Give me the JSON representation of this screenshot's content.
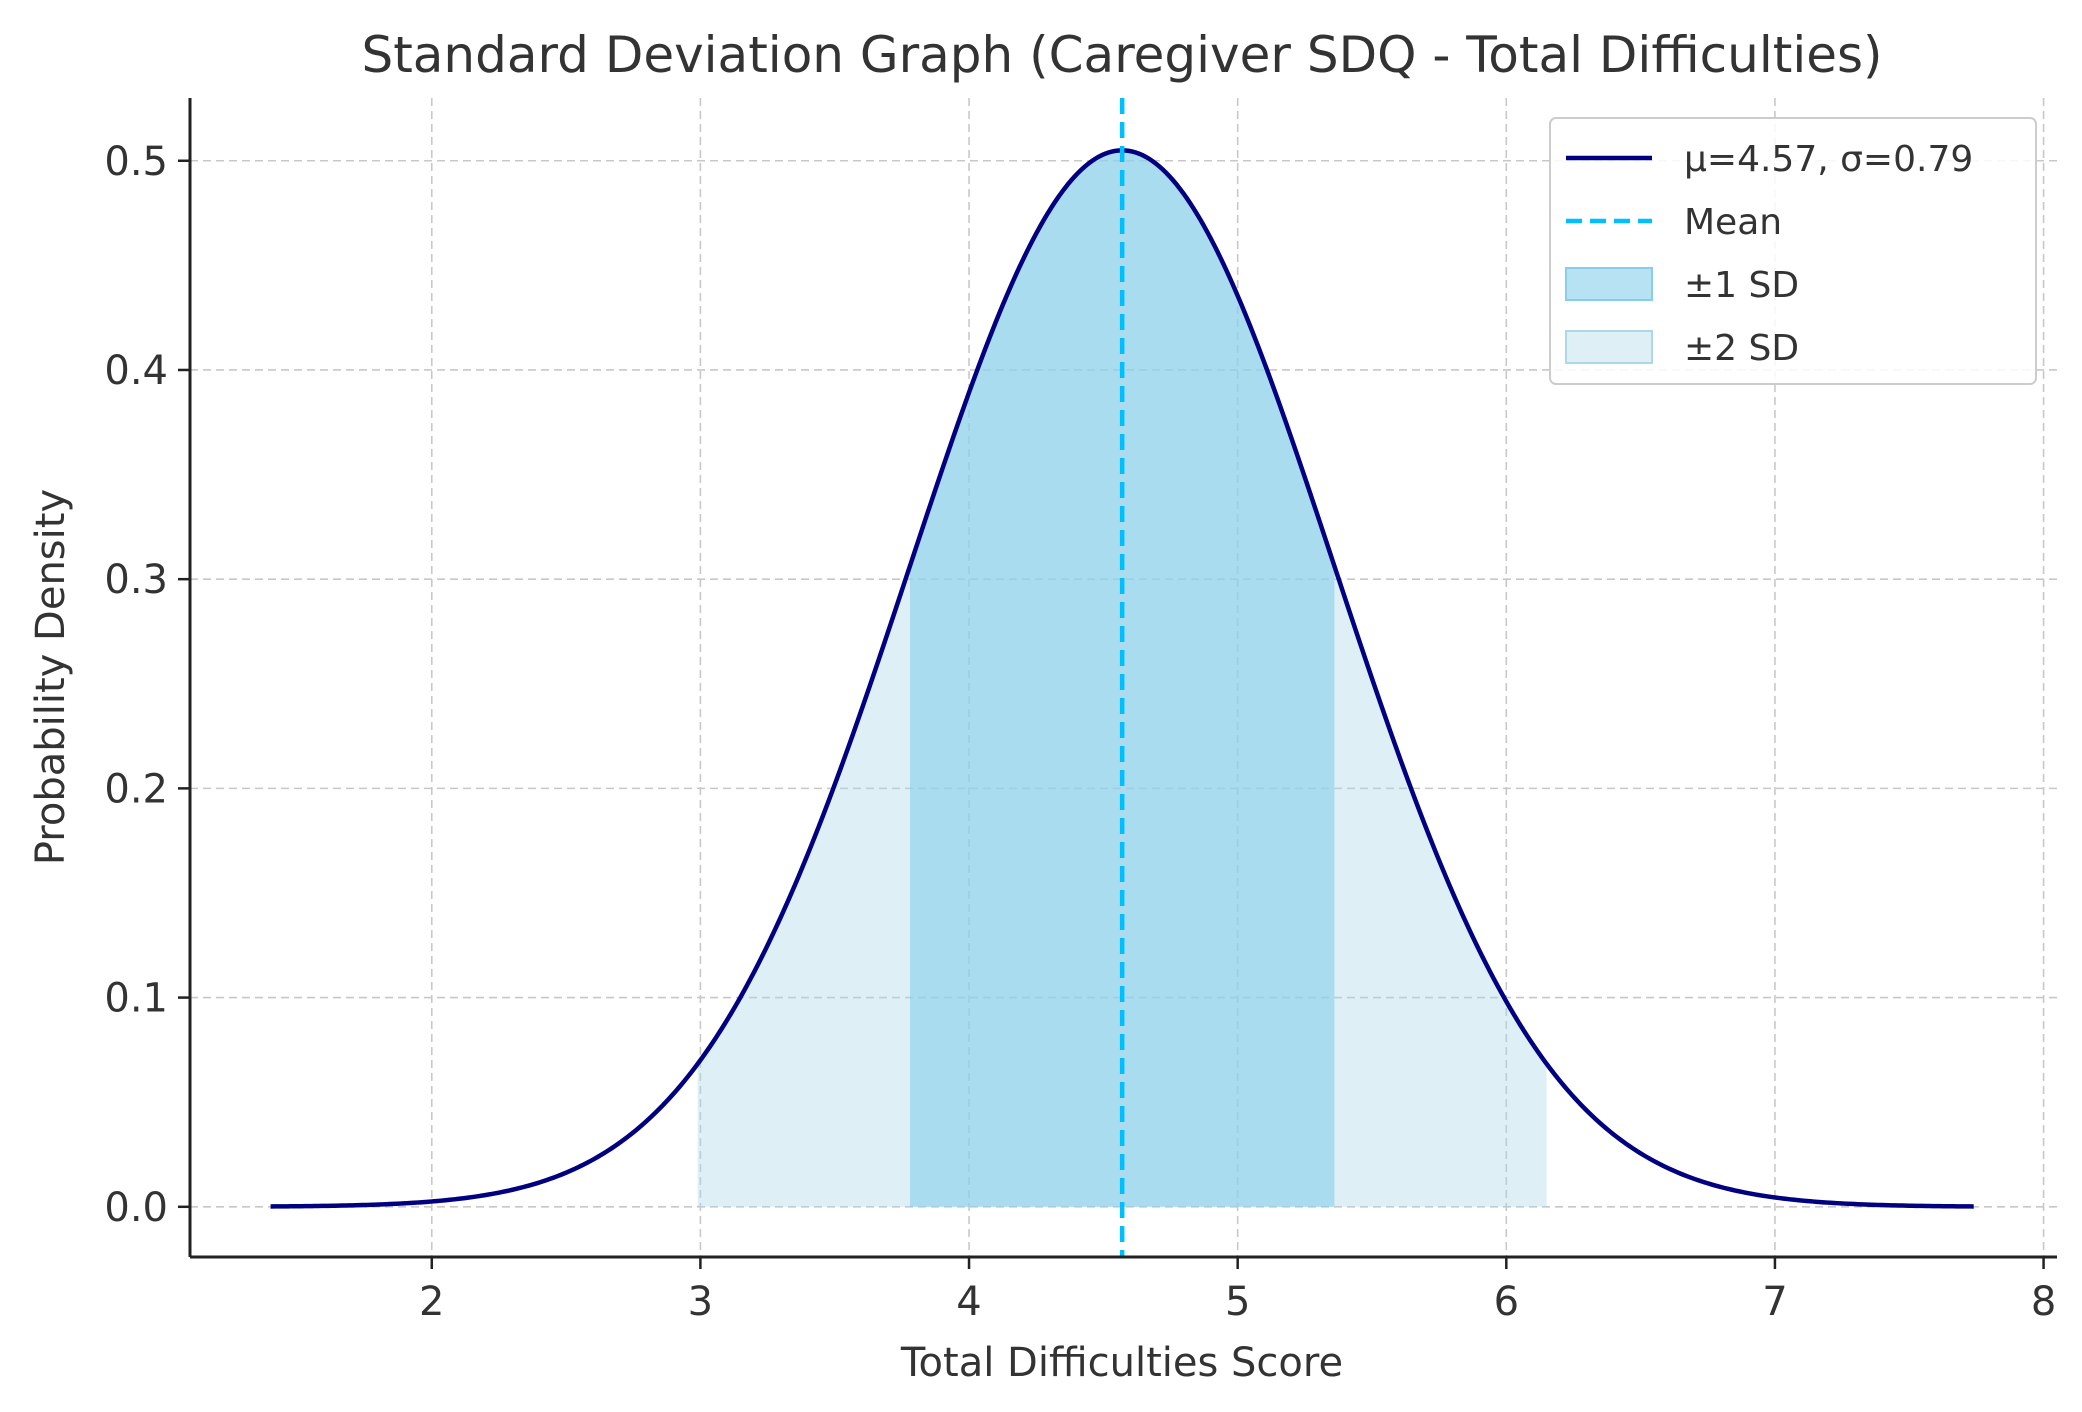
{
  "chart_data": {
    "type": "area",
    "title": "Standard Deviation Graph (Caregiver SDQ - Total Difficulties)",
    "xlabel": "Total Difficulties Score",
    "ylabel": "Probability Density",
    "xlim": [
      1.1,
      8.05
    ],
    "ylim": [
      -0.024,
      0.53
    ],
    "xticks": [
      2,
      3,
      4,
      5,
      6,
      7,
      8
    ],
    "xtick_labels": [
      "2",
      "3",
      "4",
      "5",
      "6",
      "7",
      "8"
    ],
    "yticks": [
      0.0,
      0.1,
      0.2,
      0.3,
      0.4,
      0.5
    ],
    "ytick_labels": [
      "0.0",
      "0.1",
      "0.2",
      "0.3",
      "0.4",
      "0.5"
    ],
    "grid": true,
    "legend_position": "top-right",
    "distribution": {
      "mean": 4.57,
      "sd": 0.79,
      "x_range": [
        1.4,
        7.74
      ]
    },
    "bands": [
      {
        "name": "±1 SD",
        "x_range": [
          3.78,
          5.36
        ],
        "color": "#87ceeb",
        "opacity": 0.6
      },
      {
        "name": "±2 SD",
        "x_range": [
          2.99,
          6.15
        ],
        "color": "#add8e6",
        "opacity": 0.4
      }
    ],
    "series": [
      {
        "name": "μ=4.57, σ=0.79",
        "kind": "curve",
        "color": "#000080"
      },
      {
        "name": "Mean",
        "kind": "vline",
        "x": 4.57,
        "color": "#00bfff"
      }
    ],
    "legend": [
      {
        "label": "μ=4.57, σ=0.79",
        "style": "line",
        "color": "#000080"
      },
      {
        "label": "Mean",
        "style": "dashed",
        "color": "#00bfff"
      },
      {
        "label": "±1 SD",
        "style": "patch",
        "color": "#87ceeb",
        "opacity": 0.6
      },
      {
        "label": "±2 SD",
        "style": "patch",
        "color": "#add8e6",
        "opacity": 0.4
      }
    ]
  }
}
